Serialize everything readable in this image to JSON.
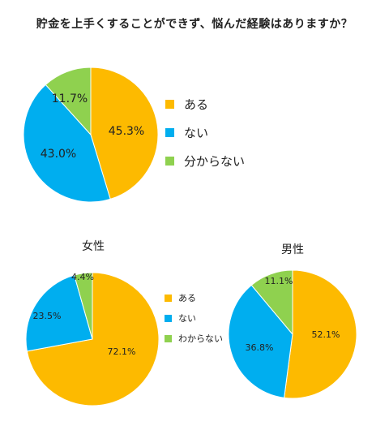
{
  "title": "貯金を上手くすることができず、悩んだ経験はありますか？",
  "colors": {
    "yes": "#FDBA00",
    "no": "#00AEEF",
    "unknown": "#8FD14F"
  },
  "chart_data": [
    {
      "type": "pie",
      "title": "",
      "slices": [
        {
          "label": "ある",
          "value": 45.3,
          "value_label": "45.3%",
          "color": "#FDBA00"
        },
        {
          "label": "ない",
          "value": 43.0,
          "value_label": "43.0%",
          "color": "#00AEEF"
        },
        {
          "label": "分からない",
          "value": 11.7,
          "value_label": "11.7%",
          "color": "#8FD14F"
        }
      ],
      "legend": [
        "ある",
        "ない",
        "分からない"
      ],
      "legend_position": "right"
    },
    {
      "type": "pie",
      "title": "女性",
      "slices": [
        {
          "label": "ある",
          "value": 72.1,
          "value_label": "72.1%",
          "color": "#FDBA00"
        },
        {
          "label": "ない",
          "value": 23.5,
          "value_label": "23.5%",
          "color": "#00AEEF"
        },
        {
          "label": "わからない",
          "value": 4.4,
          "value_label": "4.4%",
          "color": "#8FD14F"
        }
      ],
      "legend": [
        "ある",
        "ない",
        "わからない"
      ],
      "legend_position": "right"
    },
    {
      "type": "pie",
      "title": "男性",
      "slices": [
        {
          "label": "ある",
          "value": 52.1,
          "value_label": "52.1%",
          "color": "#FDBA00"
        },
        {
          "label": "ない",
          "value": 36.8,
          "value_label": "36.8%",
          "color": "#00AEEF"
        },
        {
          "label": "わからない",
          "value": 11.1,
          "value_label": "11.1%",
          "color": "#8FD14F"
        }
      ]
    }
  ]
}
